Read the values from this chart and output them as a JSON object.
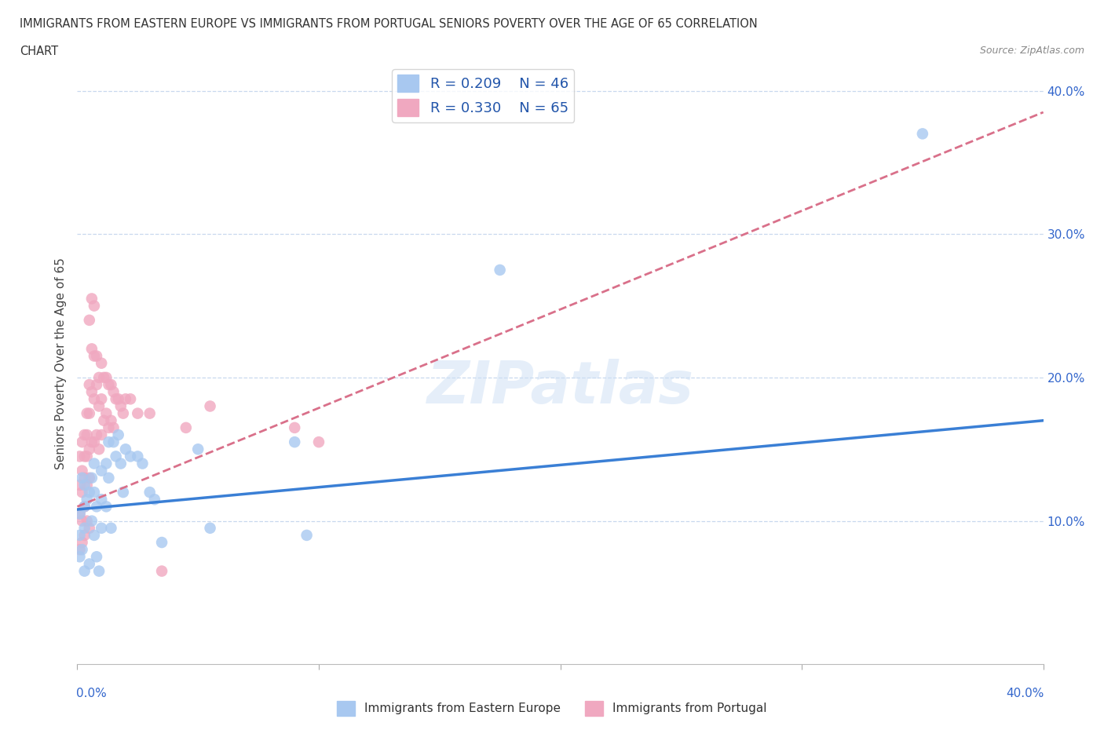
{
  "title_line1": "IMMIGRANTS FROM EASTERN EUROPE VS IMMIGRANTS FROM PORTUGAL SENIORS POVERTY OVER THE AGE OF 65 CORRELATION",
  "title_line2": "CHART",
  "source_text": "Source: ZipAtlas.com",
  "ylabel": "Seniors Poverty Over the Age of 65",
  "watermark": "ZIPatlas",
  "blue_R": 0.209,
  "blue_N": 46,
  "pink_R": 0.33,
  "pink_N": 65,
  "blue_color": "#a8c8f0",
  "pink_color": "#f0a8c0",
  "blue_line_color": "#3a7fd5",
  "pink_line_color": "#d9708a",
  "legend_text_color": "#2255aa",
  "ytick_color": "#3366cc",
  "grid_color": "#c8d8ee",
  "blue_scatter_x": [
    0.001,
    0.001,
    0.001,
    0.002,
    0.002,
    0.003,
    0.003,
    0.003,
    0.003,
    0.004,
    0.005,
    0.005,
    0.006,
    0.006,
    0.007,
    0.007,
    0.007,
    0.008,
    0.008,
    0.009,
    0.01,
    0.01,
    0.01,
    0.012,
    0.012,
    0.013,
    0.013,
    0.014,
    0.015,
    0.016,
    0.017,
    0.018,
    0.019,
    0.02,
    0.022,
    0.025,
    0.027,
    0.03,
    0.032,
    0.035,
    0.05,
    0.055,
    0.09,
    0.095,
    0.175,
    0.35
  ],
  "blue_scatter_y": [
    0.105,
    0.09,
    0.075,
    0.13,
    0.08,
    0.125,
    0.11,
    0.095,
    0.065,
    0.115,
    0.12,
    0.07,
    0.13,
    0.1,
    0.14,
    0.12,
    0.09,
    0.11,
    0.075,
    0.065,
    0.135,
    0.115,
    0.095,
    0.14,
    0.11,
    0.155,
    0.13,
    0.095,
    0.155,
    0.145,
    0.16,
    0.14,
    0.12,
    0.15,
    0.145,
    0.145,
    0.14,
    0.12,
    0.115,
    0.085,
    0.15,
    0.095,
    0.155,
    0.09,
    0.275,
    0.37
  ],
  "pink_scatter_x": [
    0.001,
    0.001,
    0.001,
    0.001,
    0.002,
    0.002,
    0.002,
    0.002,
    0.002,
    0.003,
    0.003,
    0.003,
    0.003,
    0.003,
    0.004,
    0.004,
    0.004,
    0.004,
    0.004,
    0.005,
    0.005,
    0.005,
    0.005,
    0.005,
    0.005,
    0.006,
    0.006,
    0.006,
    0.006,
    0.007,
    0.007,
    0.007,
    0.007,
    0.008,
    0.008,
    0.008,
    0.009,
    0.009,
    0.009,
    0.01,
    0.01,
    0.01,
    0.011,
    0.011,
    0.012,
    0.012,
    0.013,
    0.013,
    0.014,
    0.014,
    0.015,
    0.015,
    0.016,
    0.017,
    0.018,
    0.019,
    0.02,
    0.022,
    0.025,
    0.03,
    0.035,
    0.045,
    0.055,
    0.09,
    0.1
  ],
  "pink_scatter_y": [
    0.145,
    0.125,
    0.105,
    0.08,
    0.155,
    0.135,
    0.12,
    0.1,
    0.085,
    0.16,
    0.145,
    0.13,
    0.11,
    0.09,
    0.175,
    0.16,
    0.145,
    0.125,
    0.1,
    0.24,
    0.195,
    0.175,
    0.15,
    0.13,
    0.095,
    0.255,
    0.22,
    0.19,
    0.155,
    0.25,
    0.215,
    0.185,
    0.155,
    0.215,
    0.195,
    0.16,
    0.2,
    0.18,
    0.15,
    0.21,
    0.185,
    0.16,
    0.2,
    0.17,
    0.2,
    0.175,
    0.195,
    0.165,
    0.195,
    0.17,
    0.19,
    0.165,
    0.185,
    0.185,
    0.18,
    0.175,
    0.185,
    0.185,
    0.175,
    0.175,
    0.065,
    0.165,
    0.18,
    0.165,
    0.155
  ],
  "blue_line_x0": 0.0,
  "blue_line_x1": 0.4,
  "blue_line_y0": 0.108,
  "blue_line_y1": 0.17,
  "pink_line_x0": 0.0,
  "pink_line_x1": 0.4,
  "pink_line_y0": 0.11,
  "pink_line_y1": 0.385,
  "xlim": [
    0.0,
    0.4
  ],
  "ylim": [
    0.0,
    0.42
  ],
  "yticks": [
    0.1,
    0.2,
    0.3,
    0.4
  ],
  "ytick_labels": [
    "10.0%",
    "20.0%",
    "30.0%",
    "40.0%"
  ],
  "xtick_positions": [
    0.0,
    0.1,
    0.2,
    0.3,
    0.4
  ],
  "figsize": [
    14.06,
    9.3
  ],
  "dpi": 100
}
